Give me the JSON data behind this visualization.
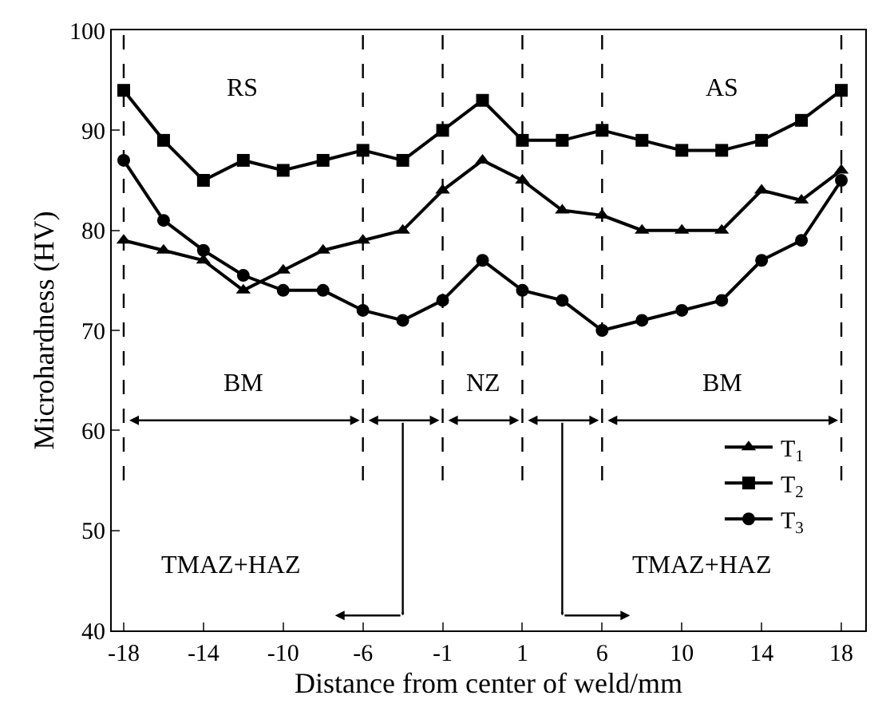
{
  "chart_data": {
    "type": "line",
    "xlabel": "Distance from center of weld/mm",
    "ylabel": "Microhardness (HV)",
    "categories": [
      "-18",
      null,
      "-14",
      null,
      "-10",
      null,
      "-6",
      null,
      "-1",
      null,
      "1",
      null,
      "6",
      null,
      "10",
      null,
      "14",
      null,
      "18"
    ],
    "series": [
      {
        "name": "T$_{1}$",
        "color": "#000000",
        "marker": "triangle",
        "values": [
          79,
          78,
          77,
          74,
          76,
          78,
          79,
          80,
          84,
          87,
          85,
          82,
          81.5,
          80,
          80,
          80,
          84,
          83,
          86
        ]
      },
      {
        "name": "T$_{2}$",
        "color": "#000000",
        "marker": "square",
        "values": [
          94,
          89,
          85,
          87,
          86,
          87,
          88,
          87,
          90,
          93,
          89,
          89,
          90,
          89,
          88,
          88,
          89,
          91,
          94
        ]
      },
      {
        "name": "T$_{3}$",
        "color": "#000000",
        "marker": "circle",
        "values": [
          87,
          81,
          78,
          75.5,
          74,
          74,
          72,
          71,
          73,
          77,
          74,
          73,
          70,
          71,
          72,
          73,
          77,
          79,
          85
        ]
      }
    ],
    "ylim": [
      40,
      100
    ],
    "yticks": [
      40,
      50,
      60,
      70,
      80,
      90,
      100
    ],
    "ref_lines": [
      {
        "axis": "x",
        "value": "-18",
        "line_style": "dashed"
      },
      {
        "axis": "x",
        "value": "-6",
        "line_style": "dashed"
      },
      {
        "axis": "x",
        "value": "-1",
        "line_style": "dashed"
      },
      {
        "axis": "x",
        "value": "1",
        "line_style": "dashed"
      },
      {
        "axis": "x",
        "value": "6",
        "line_style": "dashed"
      },
      {
        "axis": "x",
        "value": "18",
        "line_style": "dashed"
      }
    ],
    "annotations": [
      "RS",
      "AS",
      "BM",
      "NZ",
      "BM",
      "TMAZ+HAZ",
      "TMAZ+HAZ"
    ],
    "legend": "right"
  }
}
